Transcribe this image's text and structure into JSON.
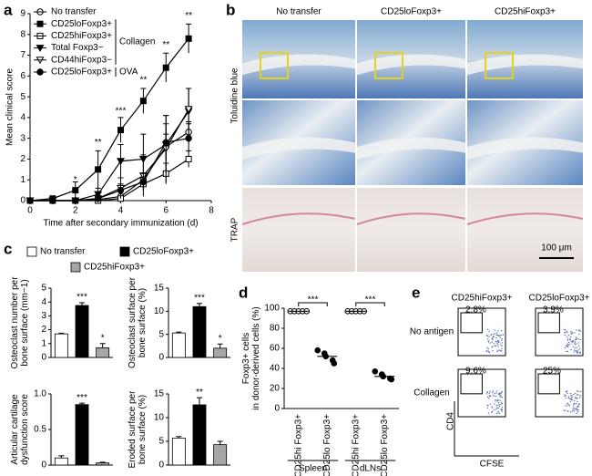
{
  "panel_labels": [
    "a",
    "b",
    "c",
    "d",
    "e"
  ],
  "chart_data": [
    {
      "type": "line",
      "y_label": "Mean clinical score",
      "x_label": "Time after secondary immunization (d)",
      "x": [
        0,
        1,
        2,
        3,
        4,
        5,
        6,
        7
      ],
      "xlim": [
        0,
        8
      ],
      "xticks": [
        0,
        2,
        4,
        6,
        8
      ],
      "ylim": [
        0,
        9
      ],
      "yticks": [
        0,
        1,
        2,
        3,
        4,
        5,
        6,
        7,
        8,
        9
      ],
      "series": [
        {
          "name": "No transfer",
          "marker": "circle",
          "filled": false,
          "color": "#000000",
          "values": [
            0,
            0,
            0,
            0.05,
            0.2,
            1.0,
            2.6,
            3.3
          ],
          "errors": [
            0,
            0,
            0,
            0,
            0.1,
            0.3,
            0.6,
            0.5
          ]
        },
        {
          "name": "CD25loFoxp3+",
          "group": "Collagen",
          "marker": "square",
          "filled": true,
          "color": "#000000",
          "values": [
            0,
            0.1,
            0.5,
            1.5,
            3.4,
            4.8,
            6.4,
            7.8
          ],
          "errors": [
            0,
            0.1,
            0.4,
            0.9,
            0.6,
            0.6,
            0.7,
            0.7
          ]
        },
        {
          "name": "CD25hiFoxp3+",
          "group": "Collagen",
          "marker": "square",
          "filled": false,
          "color": "#000000",
          "values": [
            0,
            0,
            0,
            0,
            0.1,
            0.8,
            1.3,
            2.0
          ],
          "errors": [
            0,
            0,
            0,
            0,
            0.1,
            0.3,
            0.5,
            0.4
          ]
        },
        {
          "name": "Total Foxp3−",
          "group": "Collagen",
          "marker": "triangle",
          "filled": true,
          "color": "#000000",
          "values": [
            0,
            0,
            0,
            0.3,
            1.9,
            2.0,
            2.7,
            4.3
          ],
          "errors": [
            0,
            0,
            0,
            0.3,
            0.8,
            1.2,
            1.4,
            1.1
          ]
        },
        {
          "name": "CD44hiFoxp3−",
          "group": "Collagen",
          "marker": "triangle",
          "filled": false,
          "color": "#000000",
          "values": [
            0,
            0,
            0,
            0.1,
            0.6,
            1.2,
            2.5,
            4.4
          ],
          "errors": [
            0,
            0,
            0,
            0.1,
            0.5,
            1.0,
            1.6,
            1.0
          ]
        },
        {
          "name": "CD25loFoxp3+",
          "group": "OVA",
          "marker": "circle",
          "filled": true,
          "color": "#000000",
          "values": [
            0,
            0,
            0,
            0.1,
            0.5,
            0.9,
            2.8,
            3.0
          ],
          "errors": [
            0,
            0,
            0,
            0.1,
            0.3,
            0.4,
            0.9,
            0.7
          ]
        }
      ],
      "annotations": [
        {
          "x": 2,
          "y": 1.0,
          "text": "*"
        },
        {
          "x": 3,
          "y": 2.8,
          "text": "**"
        },
        {
          "x": 4,
          "y": 4.3,
          "text": "***"
        },
        {
          "x": 5,
          "y": 5.8,
          "text": "**"
        },
        {
          "x": 6,
          "y": 7.5,
          "text": "**"
        },
        {
          "x": 7,
          "y": 8.9,
          "text": "**"
        }
      ]
    },
    {
      "type": "bar",
      "y_label": [
        "Osteoclast number per",
        "bone surface (mm−1)"
      ],
      "ylim": [
        0,
        5
      ],
      "yticks": [
        0,
        1,
        2,
        3,
        4,
        5
      ],
      "values": [
        1.7,
        3.75,
        0.7
      ],
      "errors": [
        0.05,
        0.2,
        0.3
      ],
      "annotations": [
        null,
        "***",
        "*"
      ]
    },
    {
      "type": "bar",
      "y_label": [
        "Osteoclast surface per",
        "bone surface (%)"
      ],
      "ylim": [
        0,
        15
      ],
      "yticks": [
        0,
        5,
        10,
        15
      ],
      "values": [
        5.3,
        11,
        2
      ],
      "errors": [
        0.2,
        0.7,
        0.9
      ],
      "annotations": [
        null,
        "***",
        "*"
      ]
    },
    {
      "type": "bar",
      "y_label": [
        "Articular cartilage",
        "dysfunction score"
      ],
      "ylim": [
        0,
        1
      ],
      "yticks": [
        0,
        0.5,
        {
          "value": 1,
          "label": "1.0"
        }
      ],
      "values": [
        0.1,
        0.85,
        0.03
      ],
      "errors": [
        0.03,
        0.02,
        0.01
      ],
      "annotations": [
        null,
        "***",
        null
      ]
    },
    {
      "type": "bar",
      "y_label": [
        "Eroded surface per",
        "bone surface (%)"
      ],
      "ylim": [
        0,
        15
      ],
      "yticks": [
        0,
        5,
        10,
        15
      ],
      "values": [
        5.7,
        12.7,
        4.3
      ],
      "errors": [
        0.3,
        1.5,
        0.7
      ],
      "annotations": [
        null,
        "**",
        null
      ]
    },
    {
      "type": "strip",
      "y_label": [
        "Foxp3+ cells",
        "in donor-derived cells (%)"
      ],
      "ylim": [
        0,
        100
      ],
      "yticks": [
        0,
        20,
        40,
        60,
        80,
        100
      ],
      "categories": [
        "CD25hi Foxp3+",
        "CD25lo Foxp3+",
        "CD25hi Foxp3+",
        "CD25lo Foxp3+"
      ],
      "groups": [
        "Spleen",
        "dLNs"
      ],
      "values": [
        [
          97,
          97,
          97,
          97,
          97
        ],
        [
          58,
          55,
          52,
          48,
          45
        ],
        [
          97,
          97,
          97,
          97,
          97
        ],
        [
          37,
          34,
          32,
          30,
          29
        ]
      ],
      "means": [
        97,
        52,
        97,
        32
      ],
      "annotations": [
        "***",
        "***"
      ]
    }
  ],
  "panel_c_legend": {
    "names": [
      "No transfer",
      "CD25loFoxp3+",
      "CD25hiFoxp3+"
    ],
    "colors": [
      "#ffffff",
      "#000000",
      "#a6a6a6"
    ]
  },
  "histology": {
    "columns": [
      "No transfer",
      "CD25loFoxp3+",
      "CD25hiFoxp3+"
    ],
    "rows": [
      "Toluidine blue",
      "TRAP"
    ],
    "scale_bar": "100 μm"
  },
  "flow": {
    "columns": [
      "CD25hiFoxp3+",
      "CD25loFoxp3+"
    ],
    "rows": [
      "No antigen",
      "Collagen"
    ],
    "gates": [
      [
        "2.8%",
        "3.9%"
      ],
      [
        "9.6%",
        "25%"
      ]
    ],
    "x_label": "CFSE",
    "y_label": "CD4"
  }
}
